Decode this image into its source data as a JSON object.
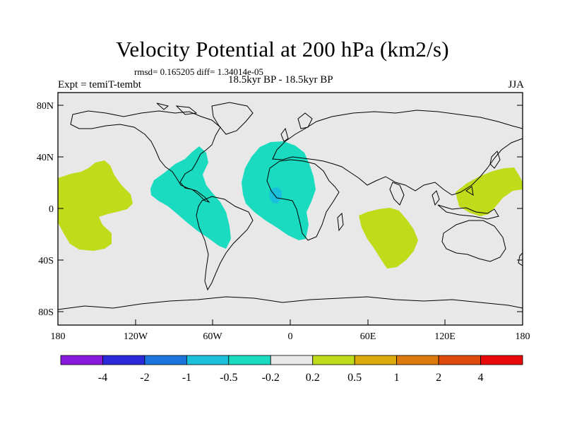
{
  "title": "Velocity Potential at 200 hPa (km2/s)",
  "stats": "rmsd= 0.165205 diff= 1.34014e-05",
  "left_label": "Expt = temiT-tembt",
  "center_label": "18.5kyr BP - 18.5kyr BP",
  "right_label": "JJA",
  "lat_ticks": [
    "80N",
    "40N",
    "0",
    "40S",
    "80S"
  ],
  "lon_ticks": [
    "180",
    "120W",
    "60W",
    "0",
    "60E",
    "120E",
    "180"
  ],
  "colorbar": {
    "colors": [
      "#8a1adb",
      "#2a2adb",
      "#1a74db",
      "#1ac0db",
      "#1adbc0",
      "#e8e8e8",
      "#bfdb1a",
      "#dbaa0a",
      "#db7a0a",
      "#db4a0a",
      "#e80a0a"
    ],
    "labels": [
      "-4",
      "-2",
      "-1",
      "-0.5",
      "-0.2",
      "0.2",
      "0.5",
      "1",
      "2",
      "4"
    ]
  },
  "colors": {
    "land_ocean": "#e8e8e8",
    "negative_weak": "#1adbc0",
    "negative_moderate": "#1ac0db",
    "positive_weak": "#bfdb1a"
  },
  "chart_data": {
    "type": "heatmap",
    "title": "Velocity Potential at 200 hPa (km2/s)",
    "projection": "cylindrical equidistant",
    "lon_range": [
      -180,
      180
    ],
    "lat_range": [
      -90,
      90
    ],
    "levels": [
      -4,
      -2,
      -1,
      -0.5,
      -0.2,
      0.2,
      0.5,
      1,
      2,
      4
    ],
    "regions": [
      {
        "name": "western-pacific-positive",
        "class": "0.2 to 0.5",
        "center_lon": -140,
        "center_lat": -10
      },
      {
        "name": "central-america-negative",
        "class": "-0.5 to -0.2",
        "center_lon": -80,
        "center_lat": 10
      },
      {
        "name": "atlantic-africa-negative",
        "class": "-0.5 to -0.2",
        "center_lon": -20,
        "center_lat": 15
      },
      {
        "name": "gulf-of-guinea-negative",
        "class": "-1 to -0.5",
        "center_lon": -10,
        "center_lat": 5
      },
      {
        "name": "indian-ocean-positive",
        "class": "0.2 to 0.5",
        "center_lon": 70,
        "center_lat": -25
      },
      {
        "name": "west-pacific-warm-pool-positive",
        "class": "0.2 to 0.5",
        "center_lon": 150,
        "center_lat": 10
      }
    ]
  }
}
